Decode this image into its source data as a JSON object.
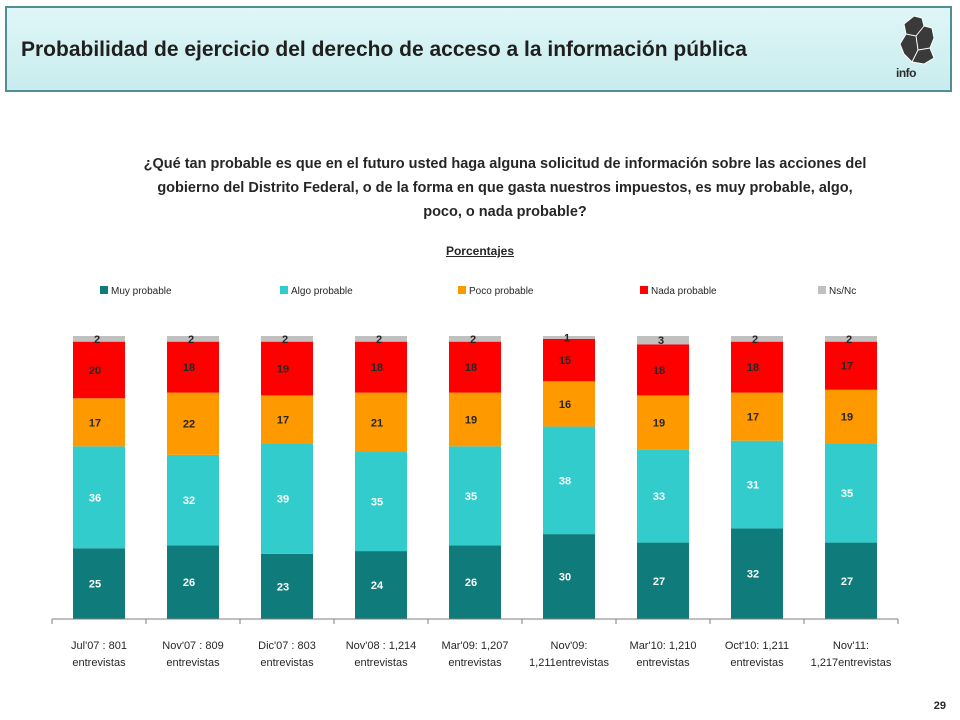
{
  "header": {
    "title": "Probabilidad de ejercicio del derecho de acceso a la información pública",
    "logo_text": "info"
  },
  "question": "¿Qué tan probable es que en el futuro usted haga alguna solicitud de información sobre las acciones del gobierno del Distrito Federal, o de la forma en que gasta nuestros impuestos, es muy probable, algo, poco, o nada probable?",
  "subtitle": "Porcentajes",
  "page_number": "29",
  "chart_data": {
    "type": "bar",
    "stacked": true,
    "title": "",
    "xlabel": "",
    "ylabel": "",
    "legend_position": "top",
    "grid": false,
    "categories": [
      [
        "Jul'07 : 801",
        "entrevistas"
      ],
      [
        "Nov'07 : 809",
        "entrevistas"
      ],
      [
        "Dic'07 : 803",
        "entrevistas"
      ],
      [
        "Nov'08 : 1,214",
        "entrevistas"
      ],
      [
        "Mar'09: 1,207",
        "entrevistas"
      ],
      [
        "Nov'09:",
        "1,211entrevistas"
      ],
      [
        "Mar'10: 1,210",
        "entrevistas"
      ],
      [
        "Oct'10: 1,211",
        "entrevistas"
      ],
      [
        "Nov'11:",
        "1,217entrevistas"
      ]
    ],
    "series": [
      {
        "name": "Muy probable",
        "color": "#0f7b7b",
        "values": [
          25,
          26,
          23,
          24,
          26,
          30,
          27,
          32,
          27
        ]
      },
      {
        "name": "Algo probable",
        "color": "#33cccc",
        "values": [
          36,
          32,
          39,
          35,
          35,
          38,
          33,
          31,
          35
        ]
      },
      {
        "name": "Poco probable",
        "color": "#ff9900",
        "values": [
          17,
          22,
          17,
          21,
          19,
          16,
          19,
          17,
          19
        ]
      },
      {
        "name": "Nada probable",
        "color": "#ff0000",
        "values": [
          20,
          18,
          19,
          18,
          18,
          15,
          18,
          18,
          17
        ]
      },
      {
        "name": "Ns/Nc",
        "color": "#c0c0c0",
        "values": [
          2,
          2,
          2,
          2,
          2,
          1,
          3,
          2,
          2
        ]
      }
    ]
  }
}
